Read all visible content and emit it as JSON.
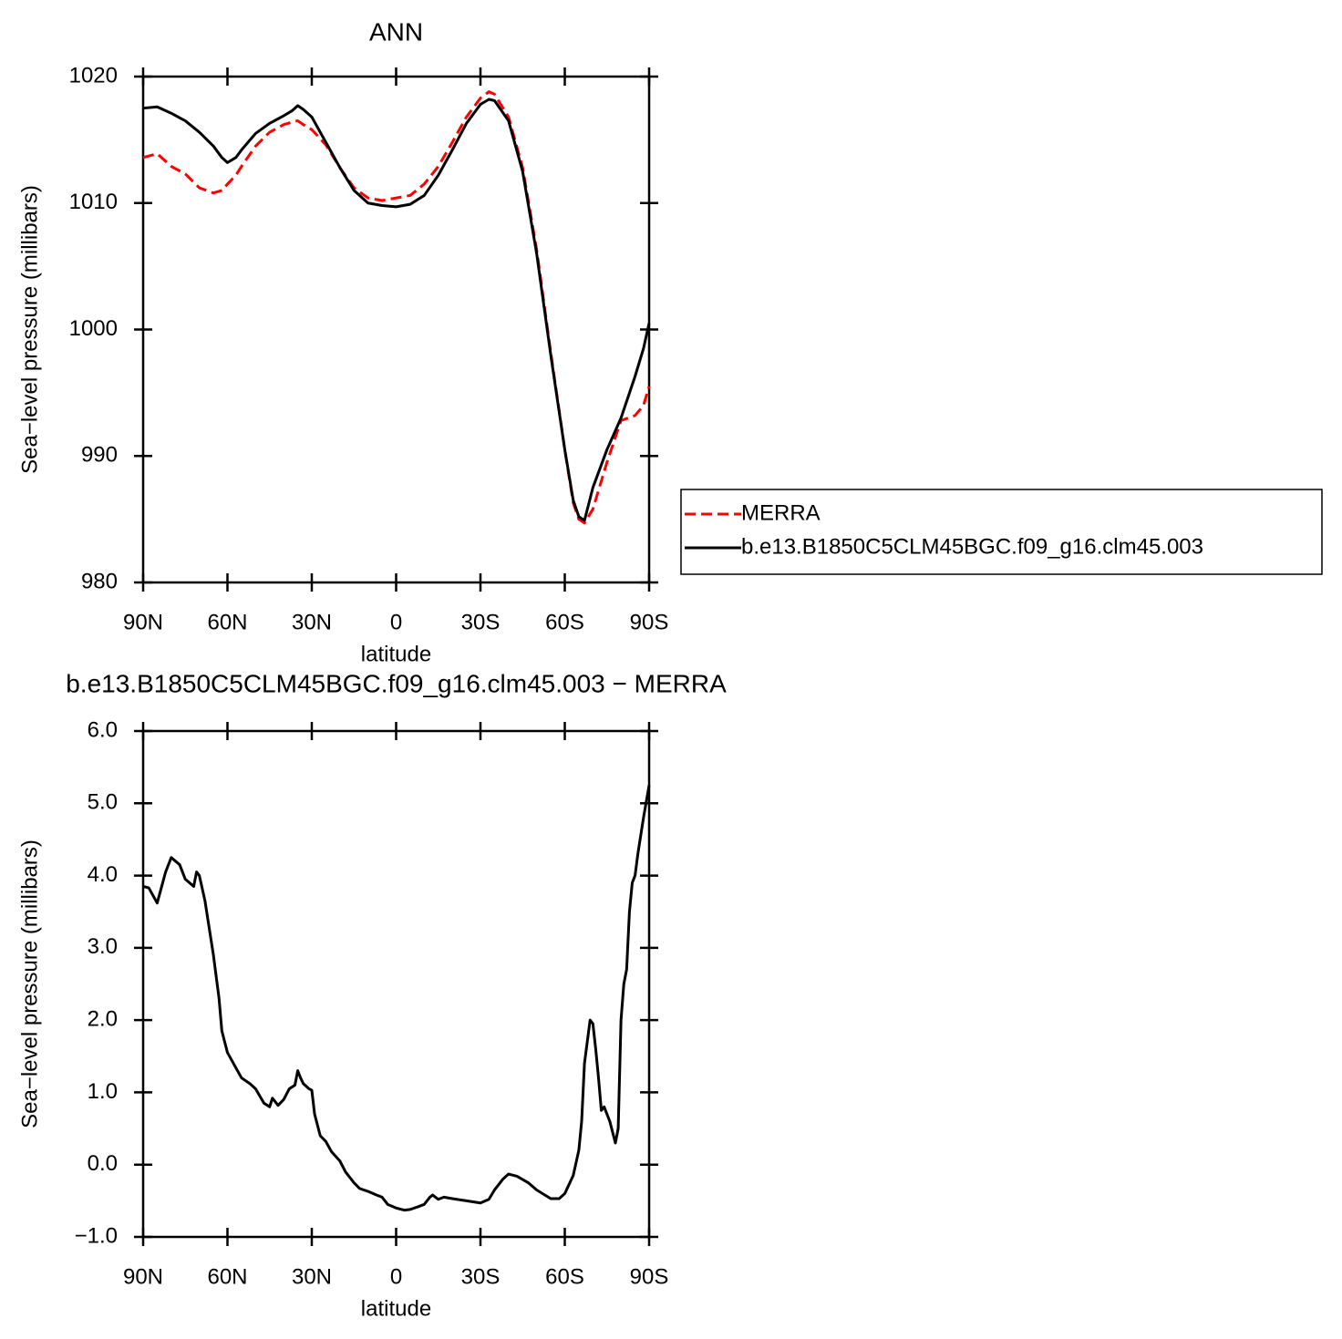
{
  "chart_data": [
    {
      "type": "line",
      "title": "ANN",
      "xlabel": "latitude",
      "ylabel": "Sea−level pressure (millibars)",
      "x": [
        90,
        85,
        80,
        75,
        70,
        65,
        62,
        60,
        57,
        55,
        50,
        45,
        40,
        37,
        35,
        33,
        30,
        25,
        20,
        15,
        10,
        5,
        0,
        -5,
        -10,
        -15,
        -20,
        -25,
        -30,
        -33,
        -35,
        -40,
        -45,
        -50,
        -55,
        -60,
        -63,
        -65,
        -67,
        -70,
        -75,
        -80,
        -85,
        -88,
        -90
      ],
      "series": [
        {
          "name": "MERRA",
          "color": "#ff0000",
          "linestyle": "dashed",
          "values": [
            1013.6,
            1013.9,
            1012.9,
            1012.3,
            1011.2,
            1010.8,
            1011.0,
            1011.5,
            1012.2,
            1012.9,
            1014.5,
            1015.6,
            1016.2,
            1016.4,
            1016.5,
            1016.2,
            1015.8,
            1014.6,
            1012.8,
            1011.2,
            1010.4,
            1010.2,
            1010.4,
            1010.6,
            1011.5,
            1012.9,
            1014.8,
            1016.8,
            1018.3,
            1018.8,
            1018.6,
            1016.8,
            1012.8,
            1006.3,
            998.2,
            990.5,
            986.3,
            985,
            984.7,
            985.8,
            989.5,
            992.8,
            993.2,
            994,
            995.5
          ]
        },
        {
          "name": "b.e13.B1850C5CLM45BGC.f09_g16.clm45.003",
          "color": "#000000",
          "linestyle": "solid",
          "values": [
            1017.5,
            1017.6,
            1017.1,
            1016.5,
            1015.6,
            1014.5,
            1013.6,
            1013.2,
            1013.6,
            1014.2,
            1015.5,
            1016.3,
            1016.9,
            1017.3,
            1017.7,
            1017.4,
            1016.8,
            1014.8,
            1012.8,
            1011.0,
            1010.0,
            1009.8,
            1009.7,
            1009.9,
            1010.6,
            1012.2,
            1014.2,
            1016.3,
            1017.8,
            1018.2,
            1018.1,
            1016.5,
            1012.5,
            1006,
            998,
            990.5,
            986.5,
            985.2,
            984.9,
            987.5,
            990.5,
            993,
            996.3,
            998.5,
            1000.5
          ]
        }
      ],
      "xlim": [
        90,
        -90
      ],
      "xticks": [
        {
          "value": 90,
          "label": "90N"
        },
        {
          "value": 60,
          "label": "60N"
        },
        {
          "value": 30,
          "label": "30N"
        },
        0,
        {
          "value": -30,
          "label": "30S"
        },
        {
          "value": -60,
          "label": "60S"
        },
        {
          "value": -90,
          "label": "90S"
        }
      ],
      "ylim": [
        980,
        1020
      ],
      "yticks": [
        980,
        990,
        1000,
        1010,
        1020
      ],
      "grid": false,
      "legend": "right"
    },
    {
      "type": "line",
      "title": "b.e13.B1850C5CLM45BGC.f09_g16.clm45.003 − MERRA",
      "xlabel": "latitude",
      "ylabel": "Sea−level pressure (millibars)",
      "x": [
        90,
        88,
        85,
        82,
        80,
        77,
        75,
        72,
        71,
        70,
        68,
        65,
        63,
        62,
        60,
        55,
        52,
        50,
        47,
        45,
        44,
        42,
        40,
        38,
        36,
        35,
        34,
        33,
        31,
        30,
        29,
        27,
        25,
        23,
        20,
        18,
        15,
        13,
        10,
        7,
        5,
        3,
        0,
        -3,
        -5,
        -8,
        -10,
        -12,
        -13,
        -15,
        -17,
        -20,
        -25,
        -30,
        -33,
        -35,
        -38,
        -40,
        -43,
        -47,
        -50,
        -55,
        -58,
        -60,
        -63,
        -65,
        -66,
        -67,
        -69,
        -70,
        -71,
        -72,
        -73,
        -74,
        -76,
        -78,
        -79,
        -80,
        -81,
        -82,
        -83,
        -84,
        -85,
        -86,
        -88,
        -90
      ],
      "values": [
        3.85,
        3.83,
        3.62,
        4.05,
        4.25,
        4.15,
        3.95,
        3.85,
        4.05,
        4.0,
        3.65,
        2.9,
        2.3,
        1.85,
        1.55,
        1.2,
        1.12,
        1.05,
        0.85,
        0.8,
        0.92,
        0.82,
        0.9,
        1.05,
        1.1,
        1.3,
        1.2,
        1.12,
        1.05,
        1.03,
        0.7,
        0.4,
        0.32,
        0.18,
        0.05,
        -0.1,
        -0.25,
        -0.33,
        -0.37,
        -0.42,
        -0.45,
        -0.55,
        -0.6,
        -0.63,
        -0.62,
        -0.58,
        -0.55,
        -0.45,
        -0.42,
        -0.48,
        -0.45,
        -0.47,
        -0.5,
        -0.53,
        -0.48,
        -0.35,
        -0.2,
        -0.13,
        -0.16,
        -0.25,
        -0.35,
        -0.47,
        -0.47,
        -0.4,
        -0.15,
        0.2,
        0.6,
        1.4,
        2.0,
        1.95,
        1.6,
        1.2,
        0.75,
        0.8,
        0.6,
        0.3,
        0.5,
        2.0,
        2.5,
        2.7,
        3.5,
        3.9,
        4.0,
        4.3,
        4.8,
        5.25
      ],
      "color": "#000000",
      "xlim": [
        90,
        -90
      ],
      "xticks": [
        {
          "value": 90,
          "label": "90N"
        },
        {
          "value": 60,
          "label": "60N"
        },
        {
          "value": 30,
          "label": "30N"
        },
        0,
        {
          "value": -30,
          "label": "30S"
        },
        {
          "value": -60,
          "label": "60S"
        },
        {
          "value": -90,
          "label": "90S"
        }
      ],
      "ylim": [
        -1,
        6
      ],
      "yticks": [
        {
          "value": -1,
          "label": "−1.0"
        },
        {
          "value": 0,
          "label": "0.0"
        },
        {
          "value": 1,
          "label": "1.0"
        },
        {
          "value": 2,
          "label": "2.0"
        },
        {
          "value": 3,
          "label": "3.0"
        },
        {
          "value": 4,
          "label": "4.0"
        },
        {
          "value": 5,
          "label": "5.0"
        },
        {
          "value": 6,
          "label": "6.0"
        }
      ],
      "grid": false
    }
  ]
}
